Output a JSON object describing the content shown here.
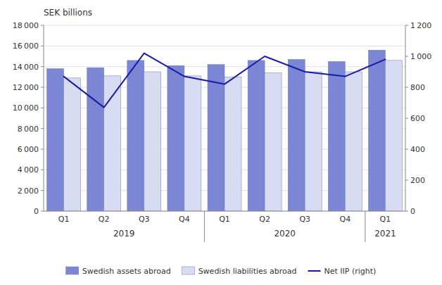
{
  "chart_data": {
    "type": "bar",
    "title": "SEK billions",
    "categories": [
      "Q1",
      "Q2",
      "Q3",
      "Q4",
      "Q1",
      "Q2",
      "Q3",
      "Q4",
      "Q1"
    ],
    "series": [
      {
        "name": "Swedish assets abroad",
        "type": "bar",
        "color": "#7b86d4",
        "values": [
          13800,
          13900,
          14600,
          14100,
          14200,
          14600,
          14700,
          14500,
          15600
        ]
      },
      {
        "name": "Swedish liabilities abroad",
        "type": "bar",
        "color": "#d8dcf2",
        "values": [
          12900,
          13100,
          13500,
          13100,
          13000,
          13400,
          13500,
          13500,
          14600
        ]
      },
      {
        "name": "Net IIP (right)",
        "type": "line",
        "axis": "y2",
        "color": "#1a1aaa",
        "values": [
          870,
          670,
          1020,
          870,
          820,
          1000,
          900,
          870,
          980
        ]
      }
    ],
    "ylim": [
      0,
      18000
    ],
    "yticks": [
      0,
      {
        "value": 2000,
        "label": "2 000"
      },
      {
        "value": 4000,
        "label": "4 000"
      },
      {
        "value": 6000,
        "label": "6 000"
      },
      {
        "value": 8000,
        "label": "8 000"
      },
      {
        "value": 10000,
        "label": "10 000"
      },
      {
        "value": 12000,
        "label": "12 000"
      },
      {
        "value": 14000,
        "label": "14 000"
      },
      {
        "value": 16000,
        "label": "16 000"
      },
      {
        "value": 18000,
        "label": "18 000"
      }
    ],
    "y2lim": [
      0,
      1200
    ],
    "y2ticks": [
      0,
      200,
      400,
      600,
      800,
      {
        "value": 1000,
        "label": "1 000"
      },
      {
        "value": 1200,
        "label": "1 200"
      }
    ],
    "annotations": [
      {
        "text": "2019",
        "x": 1.5
      },
      {
        "text": "2020",
        "x": 5.5
      },
      {
        "text": "2021",
        "x": 8.0
      }
    ],
    "separators": [
      3.5,
      7.5
    ],
    "grid": true,
    "legend": "bottom"
  }
}
